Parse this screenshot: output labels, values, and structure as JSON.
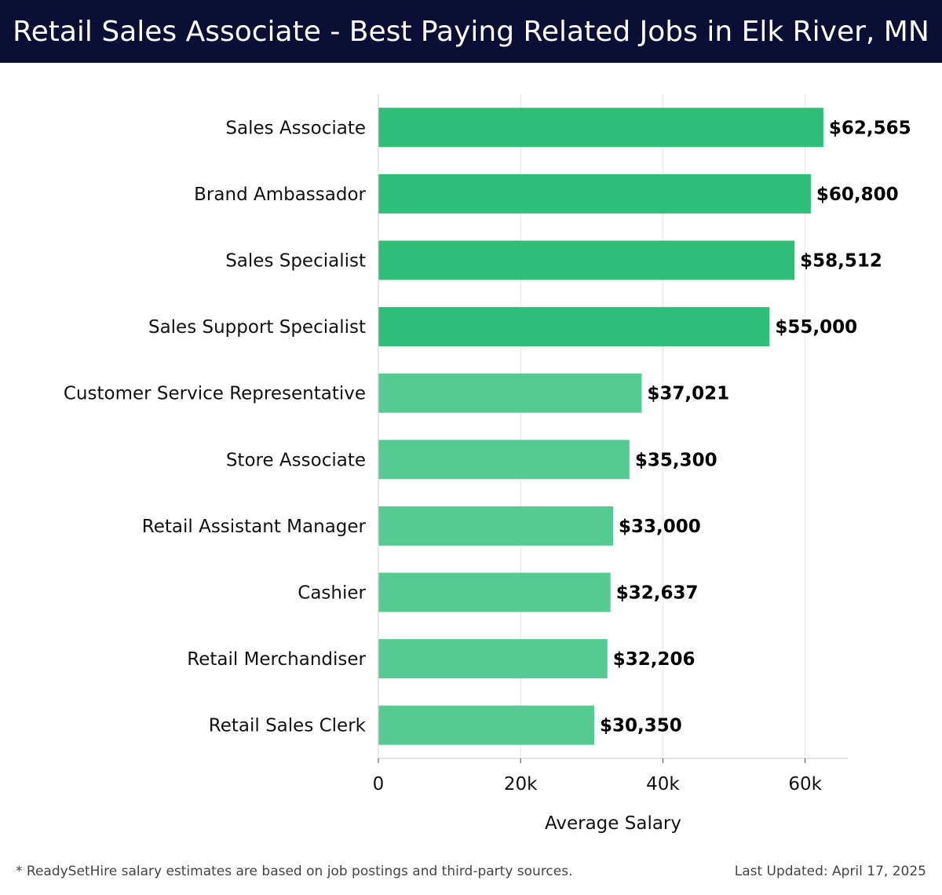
{
  "header": {
    "title": "Retail Sales Associate - Best Paying Related Jobs in Elk River, MN"
  },
  "chart_data": {
    "type": "bar",
    "orientation": "horizontal",
    "categories": [
      "Sales Associate",
      "Brand Ambassador",
      "Sales Specialist",
      "Sales Support Specialist",
      "Customer Service Representative",
      "Store Associate",
      "Retail Assistant Manager",
      "Cashier",
      "Retail Merchandiser",
      "Retail Sales Clerk"
    ],
    "values": [
      62565,
      60800,
      58512,
      55000,
      37021,
      35300,
      33000,
      32637,
      32206,
      30350
    ],
    "value_labels": [
      "$62,565",
      "$60,800",
      "$58,512",
      "$55,000",
      "$37,021",
      "$35,300",
      "$33,000",
      "$32,637",
      "$32,206",
      "$30,350"
    ],
    "xlabel": "Average Salary",
    "ylabel": "",
    "xlim": [
      0,
      66000
    ],
    "xticks": [
      0,
      20000,
      40000,
      60000
    ],
    "xtick_labels": [
      "0",
      "20k",
      "40k",
      "60k"
    ],
    "grid": true,
    "colors": {
      "high": "#2ebe78",
      "low": "#55cb93",
      "grid": "#e4e4e4",
      "axis": "#cccccc"
    },
    "highlight_count": 4
  },
  "footer": {
    "note": "* ReadySetHire salary estimates are based on job postings and third-party sources.",
    "updated": "Last Updated: April 17, 2025"
  }
}
